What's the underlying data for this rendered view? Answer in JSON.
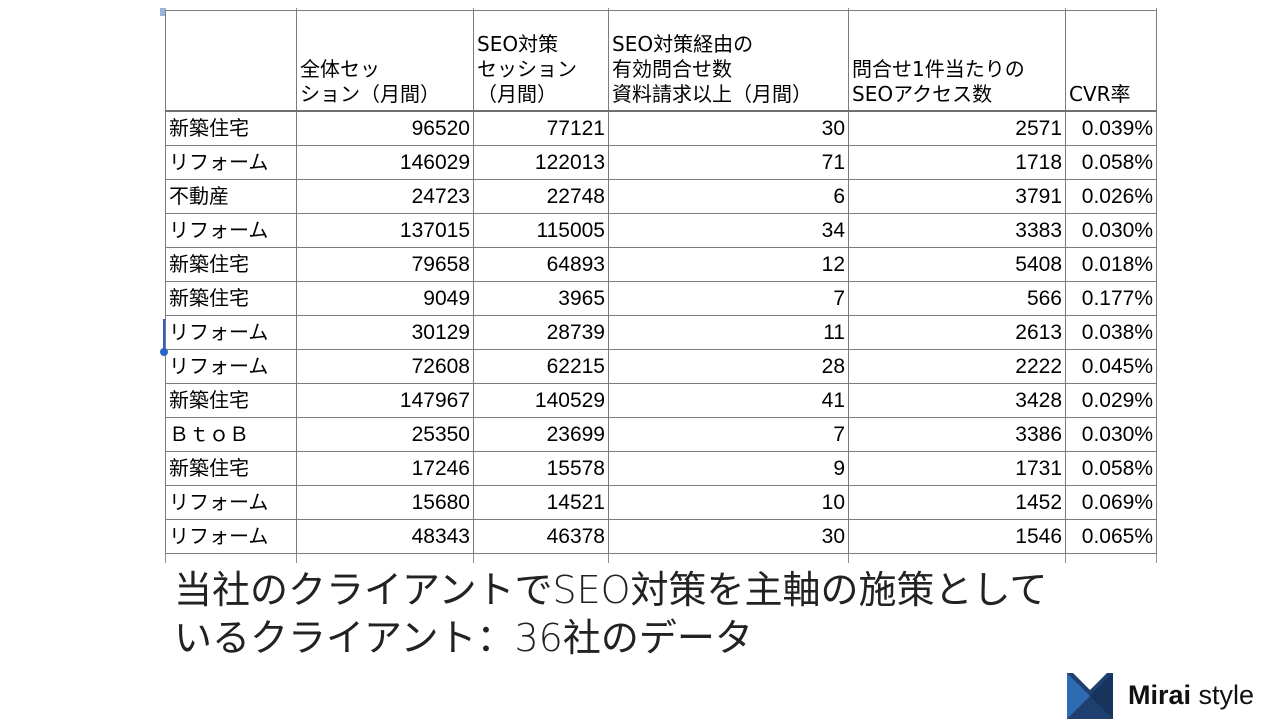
{
  "table": {
    "headers": [
      {
        "lines": [
          ""
        ]
      },
      {
        "lines": [
          "全体セッ",
          "ション（月間）"
        ]
      },
      {
        "lines": [
          "SEO対策",
          "セッション",
          "（月間）"
        ]
      },
      {
        "lines": [
          "SEO対策経由の",
          "有効問合せ数",
          "資料請求以上（月間）"
        ]
      },
      {
        "lines": [
          "問合せ1件当たりの",
          "SEOアクセス数"
        ]
      },
      {
        "lines": [
          "CVR率"
        ]
      }
    ],
    "rows": [
      [
        "新築住宅",
        "96520",
        "77121",
        "30",
        "2571",
        "0.039%"
      ],
      [
        "リフォーム",
        "146029",
        "122013",
        "71",
        "1718",
        "0.058%"
      ],
      [
        "不動産",
        "24723",
        "22748",
        "6",
        "3791",
        "0.026%"
      ],
      [
        "リフォーム",
        "137015",
        "115005",
        "34",
        "3383",
        "0.030%"
      ],
      [
        "新築住宅",
        "79658",
        "64893",
        "12",
        "5408",
        "0.018%"
      ],
      [
        "新築住宅",
        "9049",
        "3965",
        "7",
        "566",
        "0.177%"
      ],
      [
        "リフォーム",
        "30129",
        "28739",
        "11",
        "2613",
        "0.038%"
      ],
      [
        "リフォーム",
        "72608",
        "62215",
        "28",
        "2222",
        "0.045%"
      ],
      [
        "新築住宅",
        "147967",
        "140529",
        "41",
        "3428",
        "0.029%"
      ],
      [
        "ＢｔｏＢ",
        "25350",
        "23699",
        "7",
        "3386",
        "0.030%"
      ],
      [
        "新築住宅",
        "17246",
        "15578",
        "9",
        "1731",
        "0.058%"
      ],
      [
        "リフォーム",
        "15680",
        "14521",
        "10",
        "1452",
        "0.069%"
      ],
      [
        "リフォーム",
        "48343",
        "46378",
        "30",
        "1546",
        "0.065%"
      ]
    ]
  },
  "caption": {
    "line1": "当社のクライアントでSEO対策を主軸の施策として",
    "line2": "いるクライアント：36社のデータ"
  },
  "brand": {
    "name_bold": "Mirai",
    "name_rest": " style",
    "logo_color": "#1f3f6e",
    "logo_accent": "#2d6bb3"
  },
  "colors": {
    "selection_accent": "#2a62c9",
    "grid": "#7b7b7b"
  }
}
